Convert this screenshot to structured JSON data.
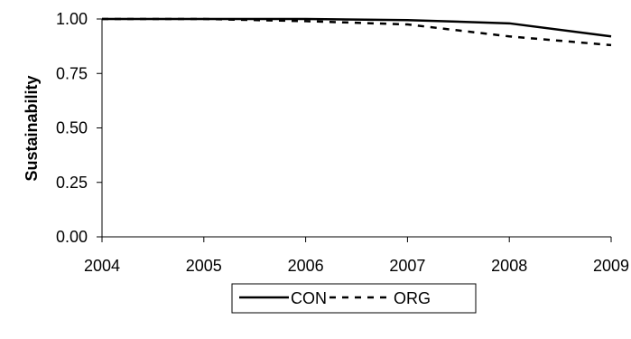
{
  "chart_data": {
    "type": "line",
    "title": "",
    "xlabel": "",
    "ylabel": "Sustainability",
    "x": [
      2004,
      2005,
      2006,
      2007,
      2008,
      2009
    ],
    "xlim": [
      2004,
      2009
    ],
    "ylim": [
      0,
      1
    ],
    "x_ticks": [
      "2004",
      "2005",
      "2006",
      "2007",
      "2008",
      "2009"
    ],
    "y_ticks": [
      "0.00",
      "0.25",
      "0.50",
      "0.75",
      "1.00"
    ],
    "grid": false,
    "legend_position": "bottom",
    "series": [
      {
        "name": "CON",
        "style": "solid",
        "color": "#000000",
        "values": [
          1.0,
          1.0,
          1.0,
          0.995,
          0.98,
          0.92
        ]
      },
      {
        "name": "ORG",
        "style": "dashed",
        "color": "#000000",
        "values": [
          1.0,
          1.0,
          0.99,
          0.975,
          0.92,
          0.88
        ]
      }
    ]
  }
}
